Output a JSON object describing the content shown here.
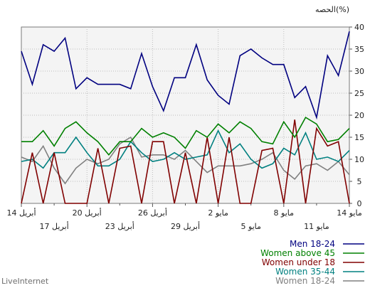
{
  "brand": "LiveInternet",
  "chart_data": {
    "type": "line",
    "title": "الحصه(%)",
    "ylim": [
      0,
      40
    ],
    "y_ticks": [
      0,
      5,
      10,
      15,
      20,
      25,
      30,
      35,
      40
    ],
    "grid": true,
    "legend_placement": "bottom-right",
    "x_tick_labels_top": [
      {
        "label": "14 مايو",
        "index": 0
      },
      {
        "label": "8 مايو",
        "index": 6
      },
      {
        "label": "2 مايو",
        "index": 12
      },
      {
        "label": "26 أبريل",
        "index": 18
      },
      {
        "label": "20 أبريل",
        "index": 24
      },
      {
        "label": "14 أبريل",
        "index": 30
      }
    ],
    "x_tick_labels_bottom": [
      {
        "label": "11 مايو",
        "index": 3
      },
      {
        "label": "5 مايو",
        "index": 9
      },
      {
        "label": "29 أبريل",
        "index": 15
      },
      {
        "label": "23 أبريل",
        "index": 21
      },
      {
        "label": "17 أبريل",
        "index": 27
      }
    ],
    "series": [
      {
        "name": "Men 18-24",
        "color": "#000080",
        "values": [
          39,
          29,
          33.5,
          19.5,
          26.5,
          24,
          31.5,
          31.5,
          33,
          35,
          33.5,
          22.5,
          24.5,
          28,
          36,
          28.5,
          28.5,
          21,
          26.5,
          34,
          26,
          27,
          27,
          27,
          28.5,
          26,
          37.5,
          34.5,
          36,
          27,
          34.5
        ]
      },
      {
        "name": "Women above 45",
        "color": "#008000",
        "values": [
          17,
          14.5,
          14,
          18,
          19.5,
          15,
          18.5,
          13.5,
          14,
          17,
          18.5,
          16,
          18,
          15,
          16.5,
          12.5,
          15,
          16,
          15,
          17,
          14,
          14,
          11,
          14,
          16,
          18.5,
          17,
          13,
          16.5,
          14,
          14
        ]
      },
      {
        "name": "Women under 18",
        "color": "#800000",
        "values": [
          0,
          14,
          13,
          17,
          0,
          19,
          0,
          12.5,
          12,
          0,
          0,
          15,
          0,
          15,
          0,
          11.5,
          0,
          14,
          14,
          0,
          13,
          12.5,
          0,
          12.5,
          0,
          0,
          0,
          11.5,
          0,
          11.5,
          0
        ]
      },
      {
        "name": "Women 35-44",
        "color": "#008080",
        "values": [
          12,
          9.5,
          10.5,
          10,
          16,
          11,
          12.5,
          9,
          8,
          10,
          13.5,
          11.5,
          16.5,
          11,
          10.5,
          10,
          11.5,
          10,
          9.5,
          11.5,
          14,
          10,
          8.5,
          8.5,
          11.5,
          15,
          11.5,
          11.5,
          8,
          10,
          9.5
        ]
      },
      {
        "name": "Women 18-24",
        "color": "#808080",
        "values": [
          6.5,
          9.5,
          7.5,
          9,
          8.5,
          5.5,
          7.5,
          11.5,
          10,
          9,
          8.5,
          8.5,
          8.5,
          7,
          9.5,
          12,
          10,
          11,
          11,
          10.5,
          15,
          13.5,
          10,
          9,
          10,
          8,
          4.5,
          8,
          13,
          9.5,
          10.5
        ]
      }
    ]
  }
}
